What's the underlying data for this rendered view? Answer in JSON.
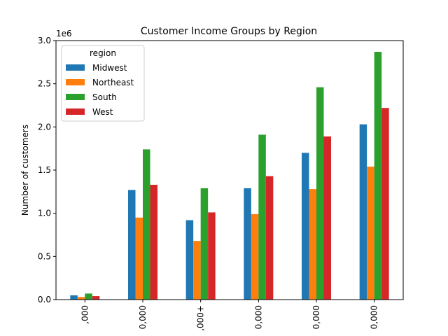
{
  "chart_data": {
    "type": "bar",
    "title": "Customer Income Groups by Region",
    "xlabel": "",
    "ylabel": "Number of customers",
    "y_scale_label": "1e6",
    "ylim": [
      0,
      3.0
    ],
    "y_ticks": [
      "0.0",
      "0.5",
      "1.0",
      "1.5",
      "2.0",
      "2.5",
      "3.0"
    ],
    "categories": [
      "...0,000",
      "...0,000",
      "...,000+",
      "...0,000",
      "...0,000",
      "...0,000"
    ],
    "category_labels_visible": ",000|0,000|,000+|0,000|0,000|0,000",
    "tick_label_text": [
      ",000",
      "0,000",
      ",000+",
      "0,000",
      "0,000",
      "0,000"
    ],
    "legend": {
      "title": "region",
      "placement": "upper-left"
    },
    "series": [
      {
        "name": "Midwest",
        "color": "#1f77b4",
        "values": [
          0.05,
          1.27,
          0.92,
          1.29,
          1.7,
          2.03
        ]
      },
      {
        "name": "Northeast",
        "color": "#ff7f0e",
        "values": [
          0.03,
          0.95,
          0.68,
          0.99,
          1.28,
          1.54
        ]
      },
      {
        "name": "South",
        "color": "#2ca02c",
        "values": [
          0.07,
          1.74,
          1.29,
          1.91,
          2.46,
          2.87
        ]
      },
      {
        "name": "West",
        "color": "#d62728",
        "values": [
          0.04,
          1.33,
          1.01,
          1.43,
          1.89,
          2.22
        ]
      }
    ]
  }
}
